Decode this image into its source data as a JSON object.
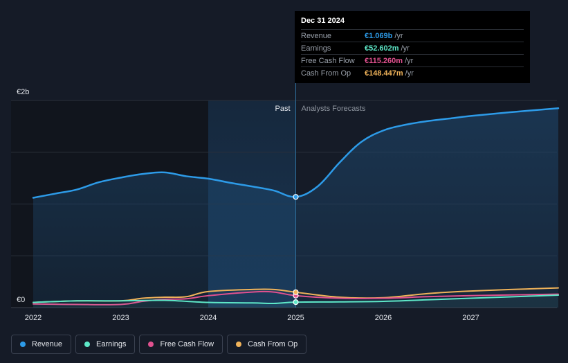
{
  "tooltip": {
    "date": "Dec 31 2024",
    "rows": [
      {
        "label": "Revenue",
        "value": "€1.069b",
        "unit": "/yr",
        "color": "#2d9be8"
      },
      {
        "label": "Earnings",
        "value": "€52.602m",
        "unit": "/yr",
        "color": "#5ee8c8"
      },
      {
        "label": "Free Cash Flow",
        "value": "€115.260m",
        "unit": "/yr",
        "color": "#e0518f"
      },
      {
        "label": "Cash From Op",
        "value": "€148.447m",
        "unit": "/yr",
        "color": "#f0b35a"
      }
    ]
  },
  "chart_data": {
    "type": "line",
    "y_labels": {
      "top": "€2b",
      "bottom": "€0"
    },
    "ylim": [
      0,
      2000
    ],
    "unit": "€m",
    "x_ticks": [
      "2022",
      "2023",
      "2024",
      "2025",
      "2026",
      "2027"
    ],
    "xlim": [
      2022.0,
      2028.0
    ],
    "divider_x": 2025.0,
    "highlight_start": 2024.0,
    "region_labels": {
      "past": "Past",
      "forecast": "Analysts Forecasts"
    },
    "grid": true,
    "series": [
      {
        "name": "Revenue",
        "color": "#2d9be8",
        "points": [
          [
            2022.0,
            1060
          ],
          [
            2022.25,
            1100
          ],
          [
            2022.5,
            1140
          ],
          [
            2022.75,
            1210
          ],
          [
            2023.0,
            1255
          ],
          [
            2023.25,
            1290
          ],
          [
            2023.5,
            1305
          ],
          [
            2023.75,
            1268
          ],
          [
            2024.0,
            1245
          ],
          [
            2024.25,
            1205
          ],
          [
            2024.5,
            1170
          ],
          [
            2024.75,
            1130
          ],
          [
            2025.0,
            1069
          ],
          [
            2025.25,
            1170
          ],
          [
            2025.5,
            1400
          ],
          [
            2025.75,
            1600
          ],
          [
            2026.0,
            1710
          ],
          [
            2026.25,
            1765
          ],
          [
            2026.5,
            1800
          ],
          [
            2026.75,
            1825
          ],
          [
            2027.0,
            1850
          ],
          [
            2027.5,
            1890
          ],
          [
            2028.0,
            1925
          ]
        ]
      },
      {
        "name": "Earnings",
        "color": "#5ee8c8",
        "points": [
          [
            2022.0,
            50
          ],
          [
            2022.5,
            65
          ],
          [
            2023.0,
            65
          ],
          [
            2023.5,
            70
          ],
          [
            2024.0,
            50
          ],
          [
            2024.5,
            45
          ],
          [
            2024.75,
            40
          ],
          [
            2025.0,
            52.6
          ],
          [
            2025.5,
            55
          ],
          [
            2026.0,
            60
          ],
          [
            2026.5,
            75
          ],
          [
            2027.0,
            90
          ],
          [
            2028.0,
            120
          ]
        ]
      },
      {
        "name": "Free Cash Flow",
        "color": "#e0518f",
        "points": [
          [
            2022.0,
            35
          ],
          [
            2022.5,
            30
          ],
          [
            2023.0,
            30
          ],
          [
            2023.25,
            60
          ],
          [
            2023.5,
            80
          ],
          [
            2023.75,
            85
          ],
          [
            2024.0,
            115
          ],
          [
            2024.5,
            150
          ],
          [
            2024.75,
            150
          ],
          [
            2025.0,
            115.26
          ],
          [
            2025.5,
            90
          ],
          [
            2026.0,
            90
          ],
          [
            2026.5,
            105
          ],
          [
            2027.0,
            115
          ],
          [
            2028.0,
            130
          ]
        ]
      },
      {
        "name": "Cash From Op",
        "color": "#f0b35a",
        "points": [
          [
            2022.0,
            50
          ],
          [
            2022.5,
            65
          ],
          [
            2023.0,
            65
          ],
          [
            2023.25,
            90
          ],
          [
            2023.5,
            100
          ],
          [
            2023.75,
            105
          ],
          [
            2024.0,
            155
          ],
          [
            2024.5,
            175
          ],
          [
            2024.75,
            175
          ],
          [
            2025.0,
            148.447
          ],
          [
            2025.5,
            100
          ],
          [
            2026.0,
            95
          ],
          [
            2026.5,
            135
          ],
          [
            2027.0,
            160
          ],
          [
            2028.0,
            190
          ]
        ]
      }
    ]
  },
  "legend": [
    {
      "label": "Revenue",
      "color": "#2d9be8"
    },
    {
      "label": "Earnings",
      "color": "#5ee8c8"
    },
    {
      "label": "Free Cash Flow",
      "color": "#e0518f"
    },
    {
      "label": "Cash From Op",
      "color": "#f0b35a"
    }
  ]
}
